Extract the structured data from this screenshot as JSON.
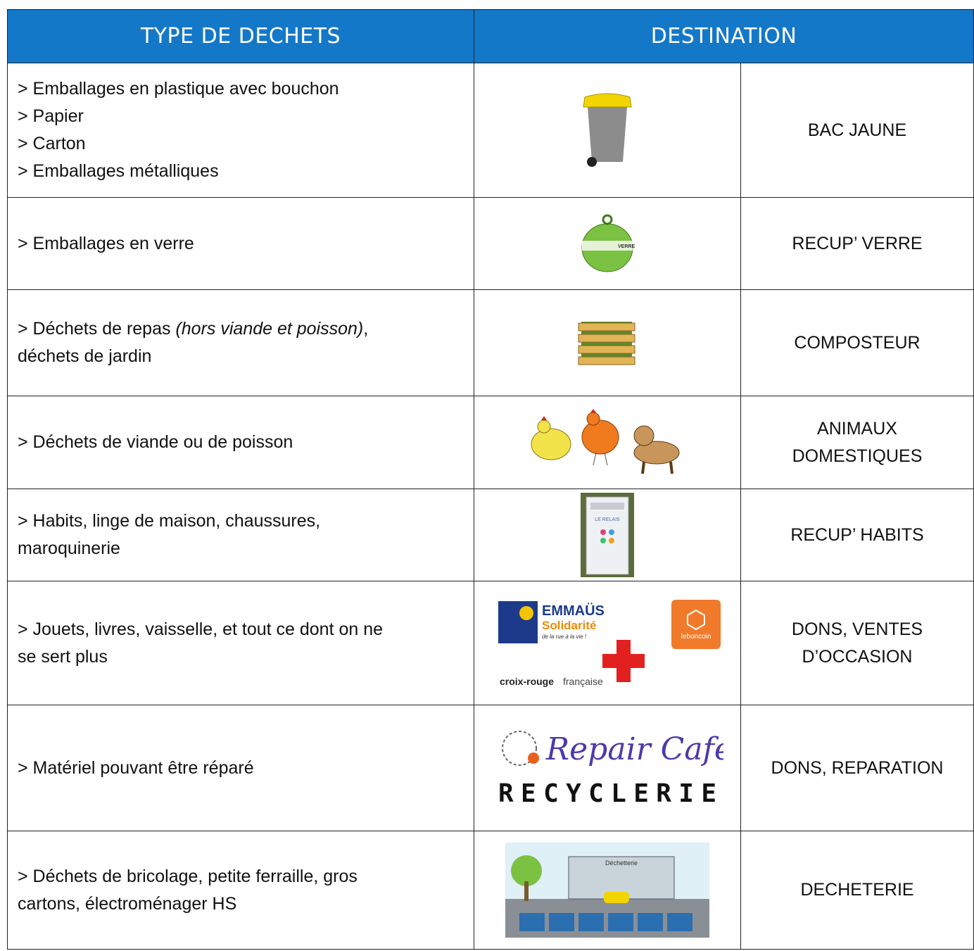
{
  "header": {
    "type": "TYPE DE DECHETS",
    "destination": "DESTINATION"
  },
  "rows": [
    {
      "type": [
        "> Emballages en plastique avec bouchon",
        "> Papier",
        "> Carton",
        "> Emballages métalliques"
      ],
      "destination": [
        "BAC JAUNE"
      ]
    },
    {
      "type": [
        "> Emballages en verre"
      ],
      "destination": [
        "RECUP’ VERRE"
      ],
      "logo_texts": [
        "VERRE"
      ]
    },
    {
      "type": [
        "> Déchets de repas ",
        "(hors viande et poisson)",
        ",",
        "déchets de jardin"
      ],
      "destination": [
        "COMPOSTEUR"
      ]
    },
    {
      "type": [
        "> Déchets de viande ou de poisson"
      ],
      "destination": [
        "ANIMAUX",
        "DOMESTIQUES"
      ]
    },
    {
      "type": [
        "> Habits, linge de maison, chaussures,",
        "maroquinerie"
      ],
      "destination": [
        "RECUP’ HABITS"
      ],
      "logo_texts": [
        "LE RELAIS"
      ]
    },
    {
      "type": [
        "> Jouets, livres, vaisselle, et tout ce dont on ne",
        "se sert plus"
      ],
      "destination": [
        "DONS, VENTES",
        "D’OCCASION"
      ],
      "logo_texts": [
        "EMMAÜS",
        "Solidarité",
        "de la rue à la vie !",
        "leboncoin",
        "croix-rouge",
        "française"
      ]
    },
    {
      "type": [
        "> Matériel pouvant être réparé"
      ],
      "destination": [
        "DONS, REPARATION"
      ],
      "logo_texts": [
        "Repair Café",
        "RECYCLERIE"
      ]
    },
    {
      "type": [
        "> Déchets de bricolage, petite ferraille, gros",
        "cartons, électroménager HS"
      ],
      "destination": [
        "DECHETERIE"
      ],
      "logo_texts": [
        "Déchetterie"
      ]
    }
  ]
}
